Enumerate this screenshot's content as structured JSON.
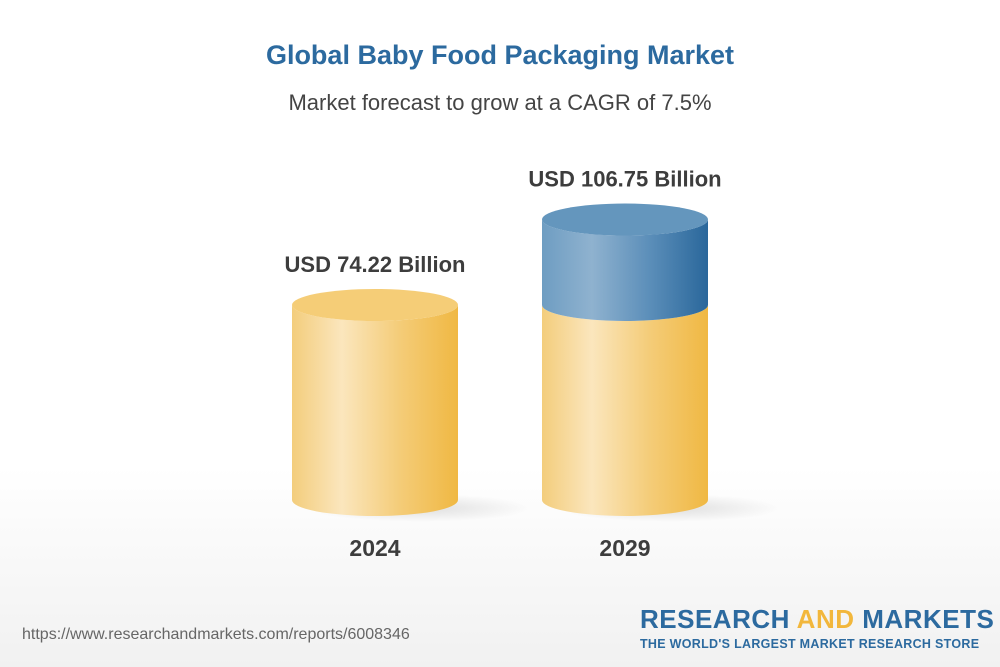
{
  "header": {
    "title": "Global Baby Food Packaging Market",
    "subtitle": "Market forecast to grow at a CAGR of 7.5%"
  },
  "chart_data": {
    "type": "bar",
    "style": "3d-cylinder",
    "categories": [
      "2024",
      "2029"
    ],
    "values": [
      74.22,
      106.75
    ],
    "data_labels": [
      "USD 74.22 Billion",
      "USD 106.75 Billion"
    ],
    "unit": "USD Billion",
    "cagr": "7.5%",
    "colors": {
      "base": "#f2c76a",
      "growth": "#4f88b5"
    },
    "grid": false,
    "legend": "none"
  },
  "footer": {
    "url": "https://www.researchandmarkets.com/reports/6008346",
    "logo_part1": "RESEARCH ",
    "logo_part2": "AND",
    "logo_part3": " MARKETS",
    "tagline": "THE WORLD'S LARGEST MARKET RESEARCH STORE"
  }
}
